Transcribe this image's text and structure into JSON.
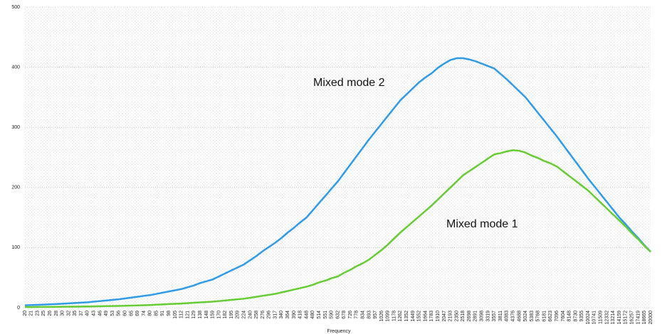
{
  "chart_data": {
    "type": "line",
    "x_label": "Frequency",
    "categories": [
      "20",
      "21",
      "23",
      "25",
      "26",
      "28",
      "30",
      "32",
      "35",
      "37",
      "40",
      "43",
      "46",
      "49",
      "53",
      "56",
      "60",
      "65",
      "69",
      "74",
      "80",
      "85",
      "91",
      "98",
      "105",
      "112",
      "121",
      "129",
      "138",
      "148",
      "159",
      "170",
      "182",
      "195",
      "209",
      "224",
      "240",
      "258",
      "276",
      "296",
      "317",
      "340",
      "364",
      "390",
      "418",
      "448",
      "480",
      "514",
      "551",
      "590",
      "632",
      "678",
      "726",
      "778",
      "834",
      "893",
      "957",
      "1026",
      "1099",
      "1178",
      "1262",
      "1352",
      "1449",
      "1552",
      "1664",
      "1783",
      "1910",
      "2047",
      "2193",
      "2350",
      "2518",
      "2698",
      "2891",
      "3098",
      "3319",
      "3557",
      "3811",
      "4083",
      "4376",
      "4688",
      "5024",
      "5383",
      "5768",
      "6181",
      "6623",
      "7096",
      "7604",
      "8148",
      "8730",
      "9355",
      "10024",
      "10741",
      "11509",
      "12332",
      "13214",
      "14159",
      "15172",
      "16257",
      "17419",
      "18665",
      "20000"
    ],
    "series": [
      {
        "name": "Mixed mode 2",
        "color": "#2f9be6",
        "values": [
          4,
          4.4,
          4.8,
          5.2,
          5.6,
          6,
          6.6,
          7.2,
          7.8,
          8.4,
          9,
          10,
          11,
          12,
          13,
          14,
          15.4,
          16.8,
          18.2,
          19.6,
          21,
          23,
          25,
          27,
          29,
          31,
          34,
          37,
          41,
          44,
          47,
          52,
          57,
          62,
          67,
          72,
          79,
          86,
          94,
          101,
          108,
          116,
          125,
          133,
          142,
          150,
          162,
          174,
          186,
          198,
          210,
          224,
          238,
          252,
          266,
          280,
          293,
          306,
          319,
          332,
          345,
          355,
          365,
          375,
          383,
          390,
          399,
          406,
          412,
          415,
          415,
          413,
          410,
          406,
          402,
          398,
          389,
          380,
          370,
          360,
          350,
          337,
          324,
          311,
          298,
          285,
          271,
          257,
          243,
          229,
          215,
          202,
          189,
          176,
          163,
          150,
          139,
          127,
          116,
          104,
          93
        ]
      },
      {
        "name": "Mixed mode 1",
        "color": "#66cc33",
        "values": [
          1,
          1.1,
          1.2,
          1.3,
          1.4,
          1.5,
          1.6,
          1.7,
          1.8,
          1.9,
          2,
          2.2,
          2.4,
          2.6,
          2.8,
          3,
          3.3,
          3.6,
          3.9,
          4.2,
          4.5,
          5,
          5.5,
          6,
          6.5,
          7,
          7.6,
          8.2,
          8.8,
          9.4,
          10,
          11,
          12,
          13,
          14,
          15,
          16.6,
          18.2,
          19.8,
          21.4,
          23,
          25.4,
          27.8,
          30.2,
          32.6,
          35,
          38,
          42,
          45,
          49,
          52,
          58,
          63,
          69,
          74,
          80,
          88,
          96,
          105,
          115,
          125,
          134,
          143,
          152,
          161,
          170,
          180,
          190,
          200,
          210,
          220,
          227,
          234,
          241,
          248,
          255,
          257,
          260,
          262,
          261,
          258,
          253,
          249,
          244,
          240,
          235,
          227,
          219,
          211,
          203,
          195,
          185,
          175,
          165,
          155,
          145,
          135,
          124,
          114,
          103,
          93
        ]
      }
    ],
    "ylim": [
      0,
      500
    ],
    "yticks": [
      0,
      100,
      200,
      300,
      400,
      500
    ],
    "grid": true
  }
}
